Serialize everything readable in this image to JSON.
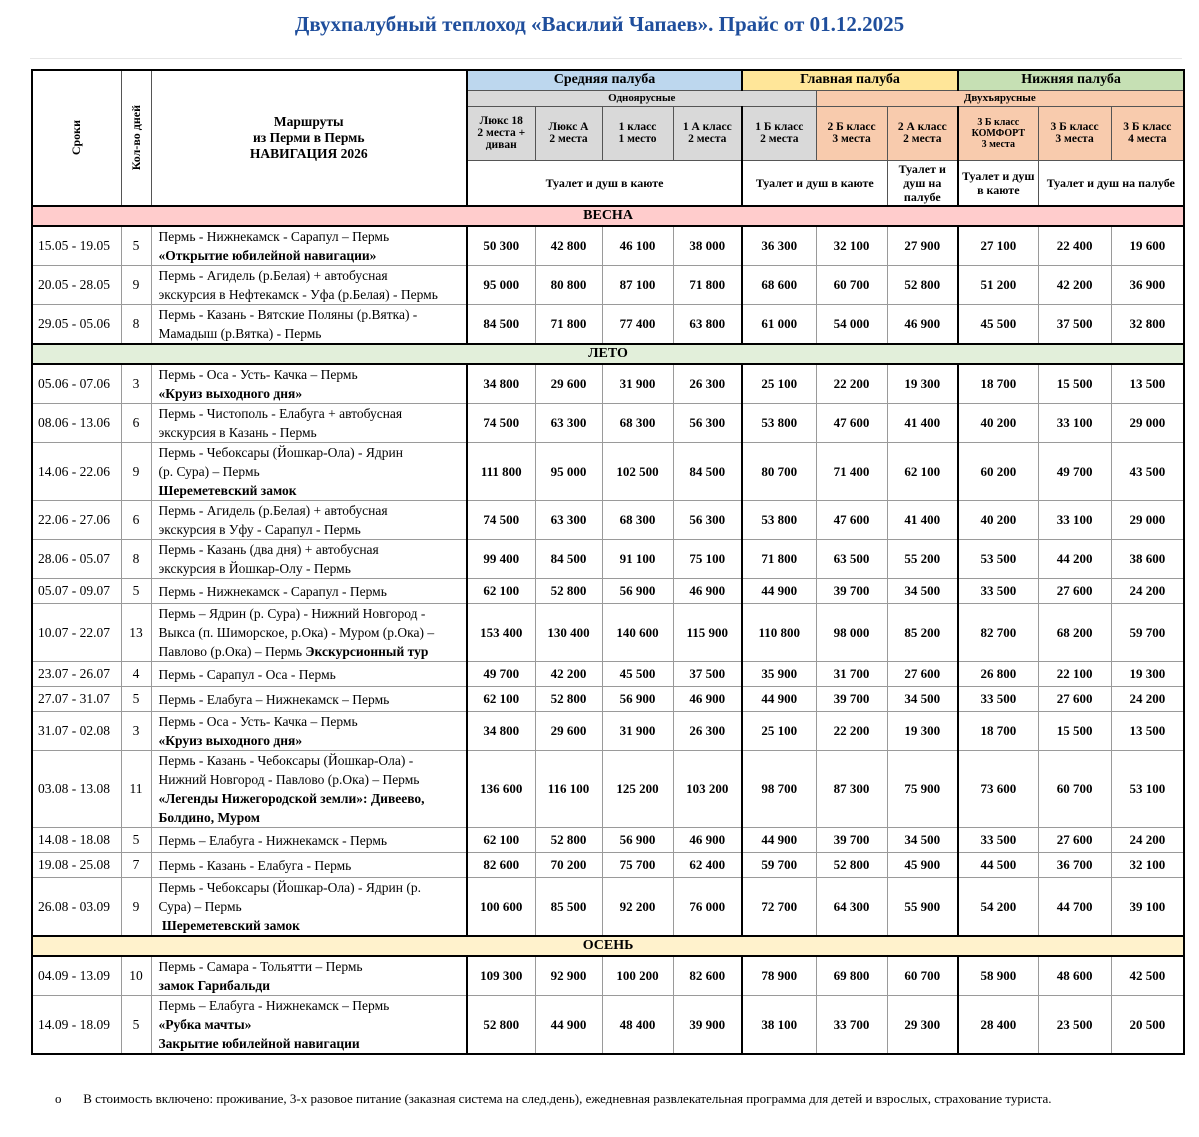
{
  "title": "Двухпалубный теплоход «Василий Чапаев». Прайс от 01.12.2025",
  "header": {
    "dates_label": "Сроки",
    "days_label": "Кол-во дней",
    "route_label": [
      "Маршруты",
      "из Перми в Пермь",
      "НАВИГАЦИЯ  2026"
    ],
    "decks": [
      {
        "name": "Средняя палуба",
        "color": "#bdd7ee"
      },
      {
        "name": "Главная палуба",
        "color": "#ffe699"
      },
      {
        "name": "Нижняя палуба",
        "color": "#c6e0b4"
      }
    ],
    "tiers": [
      {
        "name": "Одноярусные",
        "color": "#d9d9d9"
      },
      {
        "name": "Двухъярусные",
        "color": "#f8cbad"
      }
    ],
    "classes": [
      [
        "Люкс 18",
        "2 места +",
        "диван"
      ],
      [
        "Люкс А",
        "2 места"
      ],
      [
        "1 класс",
        "1 место"
      ],
      [
        "1 А класс",
        "2  места"
      ],
      [
        "1 Б класс",
        "2 места"
      ],
      [
        "2 Б класс",
        "3 места"
      ],
      [
        "2 А класс",
        "2 места"
      ],
      [
        "3 Б класс",
        "КОМФОРТ",
        "3 места"
      ],
      [
        "3 Б класс",
        "3 места"
      ],
      [
        "3 Б класс",
        "4 места"
      ]
    ],
    "facilities": [
      "Туалет и душ в каюте",
      "Туалет и душ в каюте",
      "Туалет и душ на палубе",
      "Туалет и душ в каюте",
      "Туалет и душ на палубе"
    ]
  },
  "sections": [
    {
      "season": "ВЕСНА",
      "color": "#ffcccc",
      "rows": [
        {
          "dates": "15.05 - 19.05",
          "days": "5",
          "route": [
            {
              "t": "Пермь - Нижнекамск - Сарапул – Пермь"
            },
            {
              "b": "«Открытие юбилейной навигации»"
            }
          ],
          "prices": [
            "50 300",
            "42 800",
            "46 100",
            "38 000",
            "36 300",
            "32 100",
            "27 900",
            "27 100",
            "22 400",
            "19 600"
          ]
        },
        {
          "dates": "20.05 - 28.05",
          "days": "9",
          "route": [
            {
              "t": "Пермь - Агидель (р.Белая) + автобусная"
            },
            {
              "t": "экскурсия в Нефтекамск - Уфа (р.Белая) - Пермь"
            }
          ],
          "prices": [
            "95 000",
            "80 800",
            "87 100",
            "71 800",
            "68 600",
            "60 700",
            "52 800",
            "51 200",
            "42 200",
            "36 900"
          ]
        },
        {
          "dates": "29.05 - 05.06",
          "days": "8",
          "route": [
            {
              "t": "Пермь - Казань - Вятские Поляны (р.Вятка) -"
            },
            {
              "t": "Мамадыш (р.Вятка) - Пермь"
            }
          ],
          "prices": [
            "84 500",
            "71 800",
            "77 400",
            "63 800",
            "61 000",
            "54 000",
            "46 900",
            "45 500",
            "37 500",
            "32 800"
          ]
        }
      ]
    },
    {
      "season": "ЛЕТО",
      "color": "#e2efda",
      "rows": [
        {
          "dates": "05.06 - 07.06",
          "days": "3",
          "route": [
            {
              "t": "Пермь - Оса - Усть- Качка – Пермь"
            },
            {
              "b": "«Круиз выходного дня»"
            }
          ],
          "prices": [
            "34 800",
            "29 600",
            "31 900",
            "26 300",
            "25 100",
            "22 200",
            "19 300",
            "18 700",
            "15 500",
            "13 500"
          ]
        },
        {
          "dates": "08.06 - 13.06",
          "days": "6",
          "route": [
            {
              "t": "Пермь - Чистополь - Елабуга + автобусная"
            },
            {
              "t": "экскурсия в Казань - Пермь"
            }
          ],
          "prices": [
            "74 500",
            "63 300",
            "68 300",
            "56 300",
            "53 800",
            "47 600",
            "41 400",
            "40 200",
            "33 100",
            "29 000"
          ]
        },
        {
          "dates": "14.06 - 22.06",
          "days": "9",
          "route": [
            {
              "t": "Пермь - Чебоксары (Йошкар-Ола) - Ядрин"
            },
            {
              "t": "(р. Сура) – Пермь"
            },
            {
              "b": "Шереметевский замок"
            }
          ],
          "prices": [
            "111 800",
            "95 000",
            "102 500",
            "84 500",
            "80 700",
            "71 400",
            "62 100",
            "60 200",
            "49 700",
            "43 500"
          ]
        },
        {
          "dates": "22.06 - 27.06",
          "days": "6",
          "route": [
            {
              "t": "Пермь - Агидель (р.Белая) + автобусная"
            },
            {
              "t": "экскурсия в Уфу - Сарапул - Пермь"
            }
          ],
          "prices": [
            "74 500",
            "63 300",
            "68 300",
            "56 300",
            "53 800",
            "47 600",
            "41 400",
            "40 200",
            "33 100",
            "29 000"
          ]
        },
        {
          "dates": "28.06 - 05.07",
          "days": "8",
          "route": [
            {
              "t": "Пермь - Казань (два дня) + автобусная"
            },
            {
              "t": "экскурсия в Йошкар-Олу - Пермь"
            }
          ],
          "prices": [
            "99 400",
            "84 500",
            "91 100",
            "75 100",
            "71 800",
            "63 500",
            "55 200",
            "53 500",
            "44 200",
            "38 600"
          ]
        },
        {
          "dates": "05.07 - 09.07",
          "days": "5",
          "route": [
            {
              "t": "Пермь - Нижнекамск - Сарапул - Пермь"
            }
          ],
          "prices": [
            "62 100",
            "52 800",
            "56 900",
            "46 900",
            "44 900",
            "39 700",
            "34 500",
            "33 500",
            "27 600",
            "24 200"
          ]
        },
        {
          "dates": "10.07 - 22.07",
          "days": "13",
          "route": [
            {
              "t": "Пермь – Ядрин (р. Сура)  - Нижний Новгород -"
            },
            {
              "t": "Выкса (п. Шиморское, р.Ока) - Муром (р.Ока) –"
            },
            {
              "t": "Павлово (р.Ока) – Пермь ",
              "b": "Экскурсионный тур"
            }
          ],
          "prices": [
            "153 400",
            "130 400",
            "140 600",
            "115 900",
            "110 800",
            "98 000",
            "85 200",
            "82 700",
            "68 200",
            "59 700"
          ]
        },
        {
          "dates": "23.07 - 26.07",
          "days": "4",
          "route": [
            {
              "t": "Пермь - Сарапул - Оса - Пермь"
            }
          ],
          "prices": [
            "49 700",
            "42 200",
            "45 500",
            "37 500",
            "35 900",
            "31 700",
            "27 600",
            "26 800",
            "22 100",
            "19 300"
          ]
        },
        {
          "dates": "27.07 - 31.07",
          "days": "5",
          "route": [
            {
              "t": "Пермь - Елабуга – Нижнекамск – Пермь"
            }
          ],
          "prices": [
            "62 100",
            "52 800",
            "56 900",
            "46 900",
            "44 900",
            "39 700",
            "34 500",
            "33 500",
            "27 600",
            "24 200"
          ]
        },
        {
          "dates": "31.07 - 02.08",
          "days": "3",
          "route": [
            {
              "t": "Пермь - Оса - Усть- Качка – Пермь"
            },
            {
              "b": "«Круиз выходного дня»"
            }
          ],
          "prices": [
            "34 800",
            "29 600",
            "31 900",
            "26 300",
            "25 100",
            "22 200",
            "19 300",
            "18 700",
            "15 500",
            "13 500"
          ]
        },
        {
          "dates": "03.08 - 13.08",
          "days": "11",
          "route": [
            {
              "t": "Пермь - Казань - Чебоксары (Йошкар-Ола) -"
            },
            {
              "t": "Нижний Новгород - Павлово (р.Ока) – Пермь"
            },
            {
              "b": "«Легенды Нижегородской земли»: Дивеево,"
            },
            {
              "b": "Болдино, Муром"
            }
          ],
          "prices": [
            "136 600",
            "116 100",
            "125 200",
            "103 200",
            "98 700",
            "87 300",
            "75 900",
            "73 600",
            "60 700",
            "53 100"
          ]
        },
        {
          "dates": "14.08 - 18.08",
          "days": "5",
          "route": [
            {
              "t": "Пермь – Елабуга - Нижнекамск - Пермь"
            }
          ],
          "prices": [
            "62 100",
            "52 800",
            "56 900",
            "46 900",
            "44 900",
            "39 700",
            "34 500",
            "33 500",
            "27 600",
            "24 200"
          ]
        },
        {
          "dates": "19.08 - 25.08",
          "days": "7",
          "route": [
            {
              "t": "Пермь - Казань - Елабуга - Пермь"
            }
          ],
          "prices": [
            "82 600",
            "70 200",
            "75 700",
            "62 400",
            "59 700",
            "52 800",
            "45 900",
            "44 500",
            "36 700",
            "32 100"
          ]
        },
        {
          "dates": "26.08 - 03.09",
          "days": "9",
          "route": [
            {
              "t": "Пермь - Чебоксары (Йошкар-Ола) - Ядрин (р."
            },
            {
              "t": "Сура) – Пермь"
            },
            {
              "b": " Шереметевский замок"
            }
          ],
          "prices": [
            "100 600",
            "85 500",
            "92 200",
            "76 000",
            "72 700",
            "64 300",
            "55 900",
            "54 200",
            "44 700",
            "39 100"
          ]
        }
      ]
    },
    {
      "season": "ОСЕНЬ",
      "color": "#fff2cc",
      "rows": [
        {
          "dates": "04.09 - 13.09",
          "days": "10",
          "route": [
            {
              "t": "Пермь - Самара - Тольятти – Пермь"
            },
            {
              "b": "замок Гарибальди"
            }
          ],
          "prices": [
            "109 300",
            "92 900",
            "100 200",
            "82 600",
            "78 900",
            "69 800",
            "60 700",
            "58 900",
            "48 600",
            "42 500"
          ]
        },
        {
          "dates": "14.09 - 18.09",
          "days": "5",
          "route": [
            {
              "t": "Пермь – Елабуга - Нижнекамск – Пермь"
            },
            {
              "b": "«Рубка мачты»"
            },
            {
              "b": "Закрытие юбилейной навигации"
            }
          ],
          "prices": [
            "52 800",
            "44 900",
            "48 400",
            "39 900",
            "38 100",
            "33 700",
            "29 300",
            "28 400",
            "23 500",
            "20 500"
          ]
        }
      ]
    }
  ],
  "footnote": {
    "bullet": "o",
    "text": "В стоимость включено: проживание, 3-х разовое питание (заказная система на след.день), ежедневная развлекательная программа для детей и взрослых, страхование туриста."
  }
}
